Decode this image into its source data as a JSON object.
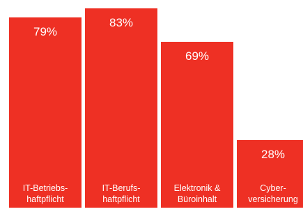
{
  "colors": {
    "bar": "#ee3024",
    "text": "#ffffff"
  },
  "chart_data": {
    "type": "bar",
    "categories": [
      "IT-Betriebs-\nhaftpflicht",
      "IT-Berufs-\nhaftpflicht",
      "Elektronik &\nBüroinhalt",
      "Cyber-\nversicherung"
    ],
    "values": [
      79,
      83,
      69,
      28
    ],
    "value_labels": [
      "79%",
      "83%",
      "69%",
      "28%"
    ],
    "ylim": [
      0,
      100
    ],
    "grid": false,
    "legend": "none"
  }
}
